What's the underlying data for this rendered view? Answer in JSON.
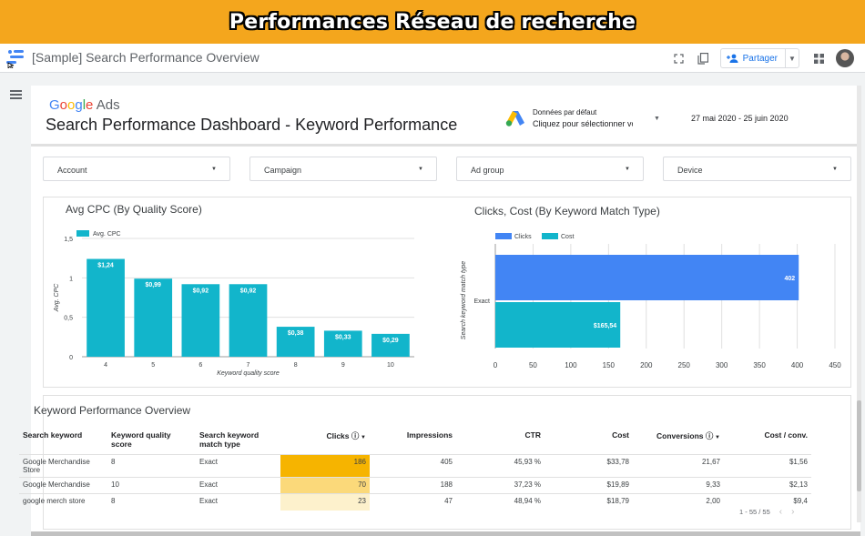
{
  "banner": {
    "title": "Performances Réseau de recherche"
  },
  "appbar": {
    "doc_title": "[Sample] Search Performance Overview",
    "share_label": "Partager"
  },
  "header": {
    "logo_google": "Google",
    "logo_ads": "Ads",
    "title": "Search Performance Dashboard - Keyword Performance",
    "datasource_label": "Données par défaut",
    "datasource_value": "Cliquez pour sélectionner votre",
    "date_range": "27 mai 2020 - 25 juin 2020"
  },
  "filters": [
    {
      "label": "Account"
    },
    {
      "label": "Campaign"
    },
    {
      "label": "Ad group"
    },
    {
      "label": "Device"
    }
  ],
  "colors": {
    "teal": "#12b5cb",
    "blue": "#4285f4",
    "orange": "#f4a61d",
    "heat1": "#f6b400",
    "heat2": "#fbd97a",
    "heat3": "#fdf1cc"
  },
  "chart_data": [
    {
      "type": "bar",
      "title": "Avg CPC (By Quality Score)",
      "xlabel": "Keyword quality score",
      "ylabel": "Avg. CPC",
      "legend": [
        "Avg. CPC"
      ],
      "legend_position": "top-left",
      "categories": [
        "4",
        "5",
        "6",
        "7",
        "8",
        "9",
        "10"
      ],
      "values": [
        1.24,
        0.99,
        0.92,
        0.92,
        0.38,
        0.33,
        0.29
      ],
      "data_labels": [
        "$1,24",
        "$0,99",
        "$0,92",
        "$0,92",
        "$0,38",
        "$0,33",
        "$0,29"
      ],
      "yticks": [
        "0",
        "0,5",
        "1",
        "1,5"
      ],
      "ylim": [
        0,
        1.5
      ],
      "grid": true
    },
    {
      "type": "bar",
      "orientation": "horizontal",
      "title": "Clicks, Cost (By Keyword Match Type)",
      "ylabel": "Search keyword match type",
      "legend": [
        "Clicks",
        "Cost"
      ],
      "legend_position": "top-left",
      "categories": [
        "Exact"
      ],
      "series": [
        {
          "name": "Clicks",
          "values": [
            402
          ],
          "data_labels": [
            "402"
          ]
        },
        {
          "name": "Cost",
          "values": [
            165.54
          ],
          "data_labels": [
            "$165,54"
          ]
        }
      ],
      "xticks": [
        "0",
        "50",
        "100",
        "150",
        "200",
        "250",
        "300",
        "350",
        "400",
        "450"
      ],
      "xlim": [
        0,
        450
      ],
      "grid": true
    }
  ],
  "table": {
    "title": "Keyword Performance Overview",
    "columns": [
      "Search keyword",
      "Keyword quality score",
      "Search keyword match type",
      "Clicks",
      "Impressions",
      "CTR",
      "Cost",
      "Conversions",
      "Cost / conv."
    ],
    "rows": [
      [
        "Google Merchandise Store",
        "8",
        "Exact",
        "186",
        "405",
        "45,93 %",
        "$33,78",
        "21,67",
        "$1,56"
      ],
      [
        "Google Merchandise",
        "10",
        "Exact",
        "70",
        "188",
        "37,23 %",
        "$19,89",
        "9,33",
        "$2,13"
      ],
      [
        "google merch store",
        "8",
        "Exact",
        "23",
        "47",
        "48,94 %",
        "$18,79",
        "2,00",
        "$9,4"
      ]
    ],
    "clicks_values": [
      186,
      70,
      23
    ],
    "pager": "1 - 55 / 55"
  }
}
